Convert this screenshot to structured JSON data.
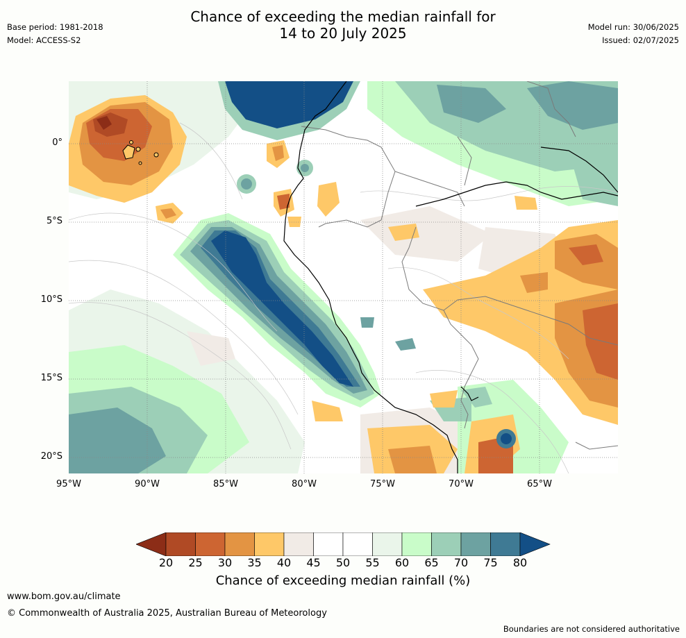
{
  "title": {
    "line1": "Chance of exceeding the median rainfall for",
    "line2": "14 to 20 July 2025"
  },
  "meta": {
    "base_period": "Base period: 1981-2018",
    "model": "Model: ACCESS-S2",
    "model_run": "Model run: 30/06/2025",
    "issued": "Issued: 02/07/2025"
  },
  "map": {
    "lat_labels": [
      "0°",
      "5°S",
      "10°S",
      "15°S",
      "20°S"
    ],
    "lon_labels": [
      "95°W",
      "90°W",
      "85°W",
      "80°W",
      "75°W",
      "70°W",
      "65°W"
    ]
  },
  "colorbar": {
    "ticks": [
      "20",
      "25",
      "30",
      "35",
      "40",
      "45",
      "50",
      "55",
      "60",
      "65",
      "70",
      "75",
      "80"
    ],
    "colors": [
      "#8c2d17",
      "#b04a25",
      "#cd6532",
      "#e39443",
      "#fec868",
      "#f1ebe6",
      "#ffffff",
      "#ffffff",
      "#eaf5ea",
      "#c9fcc9",
      "#9ccfb7",
      "#6da2a1",
      "#3f7a94",
      "#134f86"
    ],
    "label": "Chance of exceeding median rainfall (%)"
  },
  "footer": {
    "url": "www.bom.gov.au/climate",
    "copyright": "© Commonwealth of Australia 2025, Australian Bureau of Meteorology",
    "disclaimer": "Boundaries are not considered authoritative"
  }
}
